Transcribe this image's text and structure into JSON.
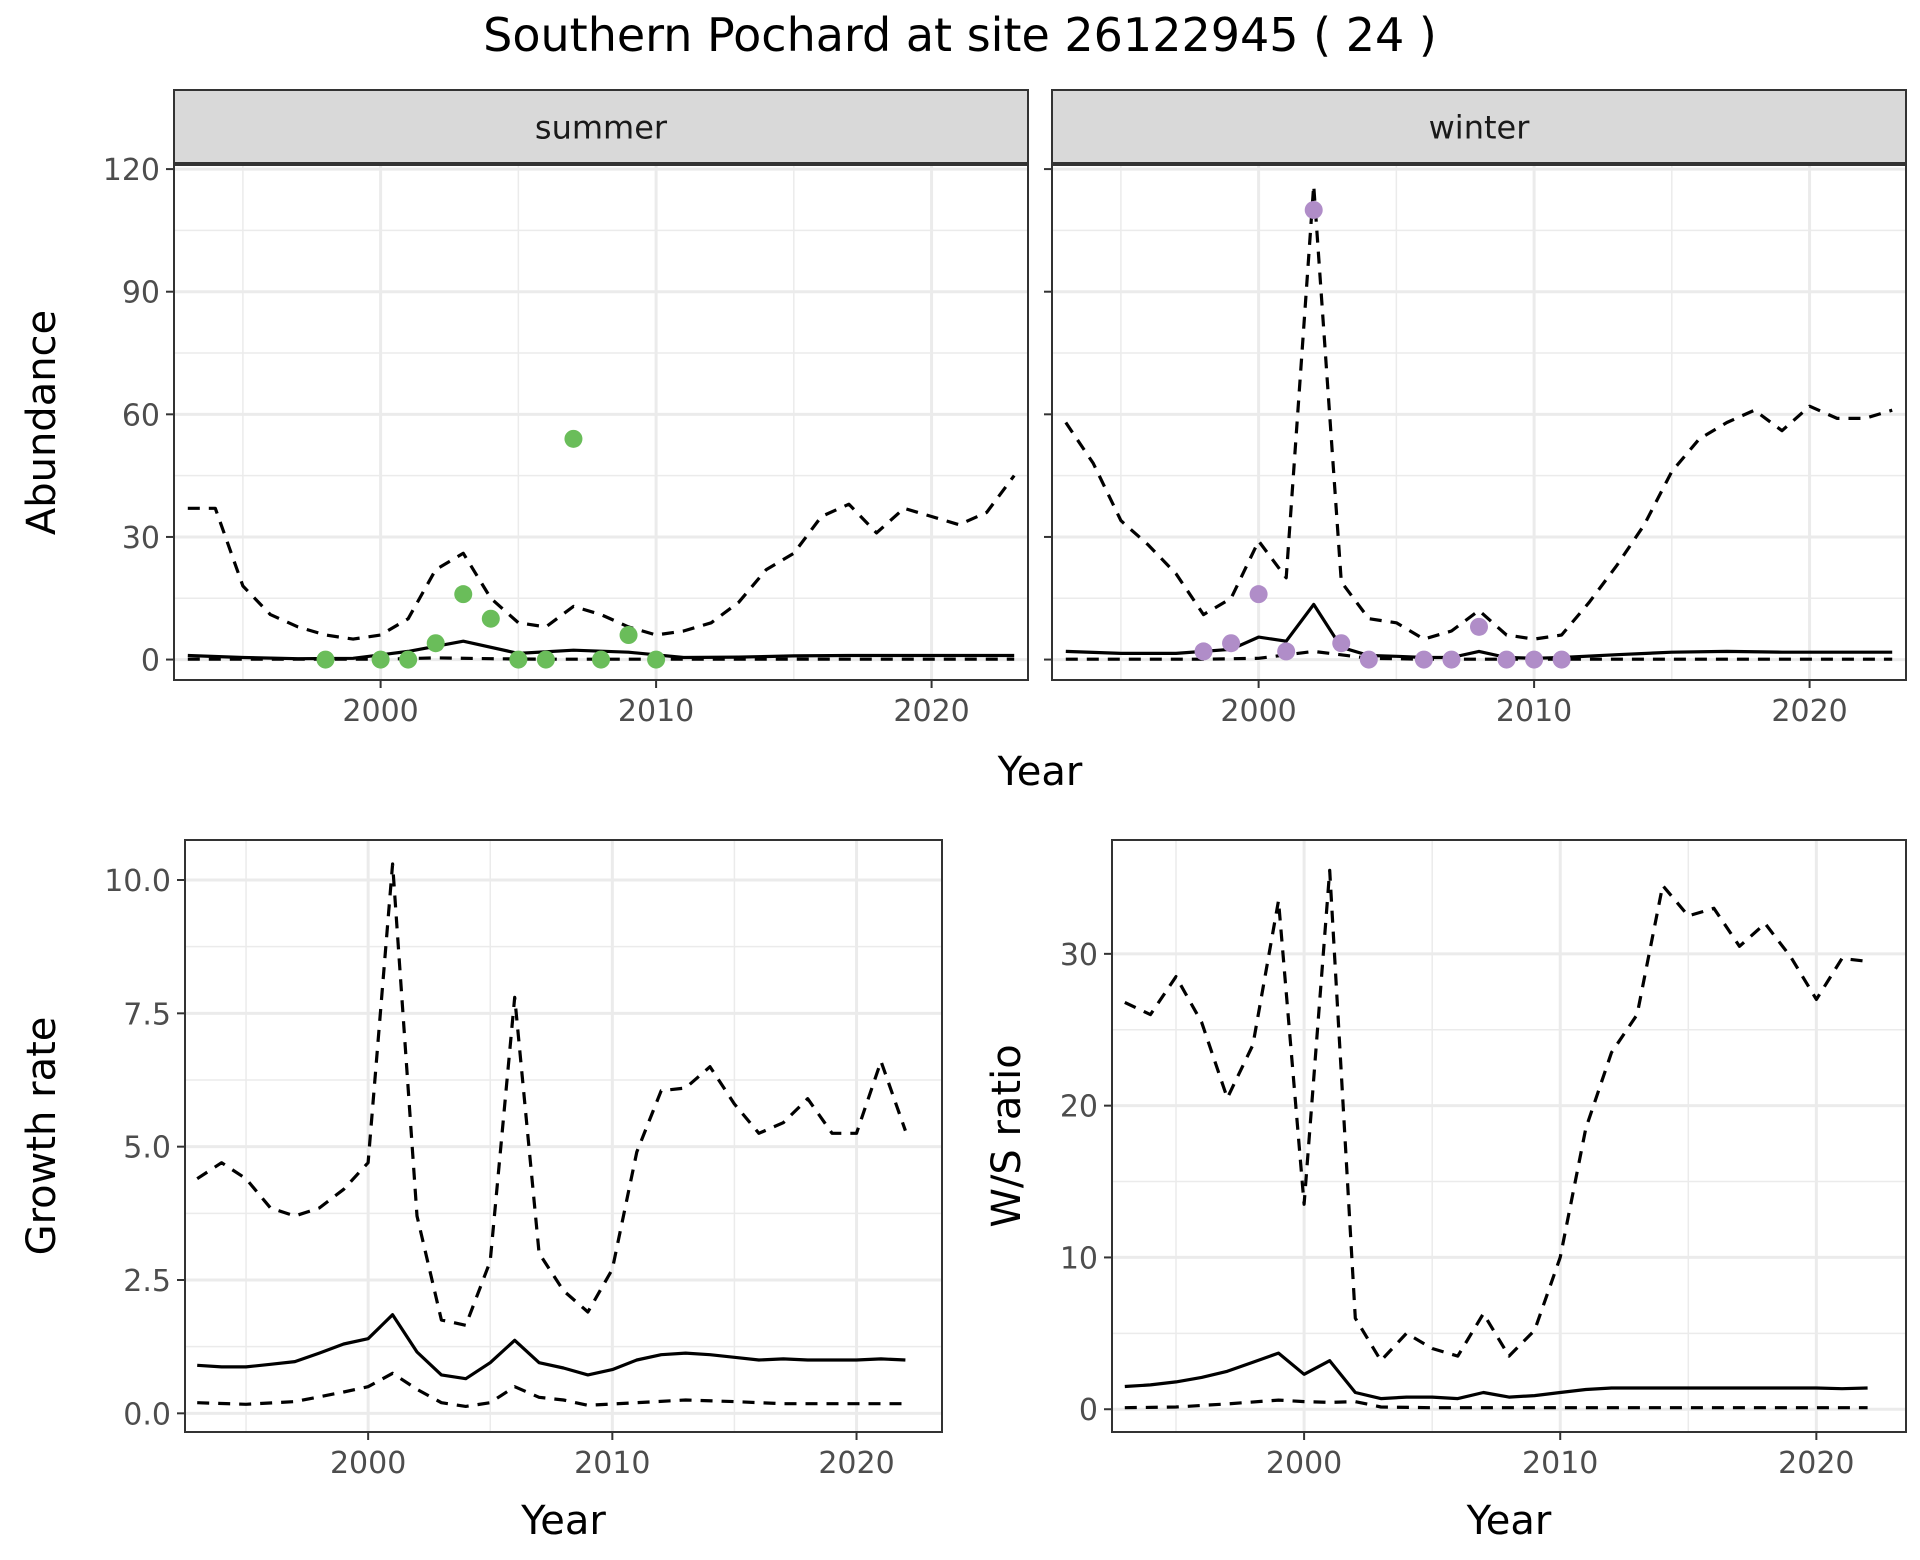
{
  "title": "Southern Pochard at site 26122945 ( 24 )",
  "styles": {
    "summer_point_color": "#6ABD5A",
    "winter_point_color": "#B08DC8",
    "line_color": "#000000",
    "strip_fill": "#D9D9D9",
    "grid_color": "#EBEBEB"
  },
  "chart_data": [
    {
      "type": "line",
      "panel": "summer",
      "strip_label": "summer",
      "xlabel": "Year",
      "ylabel": "Abundance",
      "xlim": [
        1992.5,
        2023.5
      ],
      "ylim": [
        -5,
        121
      ],
      "xticks": [
        2000,
        2010,
        2020
      ],
      "yticks": [
        0,
        30,
        60,
        90,
        120
      ],
      "grid": true,
      "series": [
        {
          "style": "solid",
          "x": [
            1993,
            1995,
            1997,
            1999,
            2001,
            2003,
            2005,
            2007,
            2009,
            2011,
            2013,
            2015,
            2017,
            2019,
            2021,
            2023
          ],
          "y": [
            1,
            0.5,
            0.2,
            0.3,
            2,
            4.5,
            1.5,
            2.3,
            1.8,
            0.5,
            0.6,
            0.9,
            1,
            1,
            1,
            1
          ]
        },
        {
          "style": "dashed",
          "x": [
            1993,
            1994,
            1995,
            1996,
            1997,
            1998,
            1999,
            2000,
            2001,
            2002,
            2003,
            2004,
            2005,
            2006,
            2007,
            2008,
            2009,
            2010,
            2011,
            2012,
            2013,
            2014,
            2015,
            2016,
            2017,
            2018,
            2019,
            2020,
            2021,
            2022,
            2023
          ],
          "y": [
            37,
            37,
            18,
            11,
            8,
            6,
            5,
            6,
            10,
            22,
            26,
            15,
            9,
            8,
            13,
            11,
            8,
            6,
            7,
            9,
            14,
            22,
            26,
            35,
            38,
            31,
            37,
            35,
            33,
            36,
            45
          ]
        },
        {
          "style": "dashed",
          "x": [
            1993,
            1998,
            2000,
            2002,
            2004,
            2006,
            2010,
            2015,
            2023
          ],
          "y": [
            0.1,
            0.1,
            0.1,
            0.4,
            0.2,
            0.1,
            0.1,
            0.1,
            0.1
          ]
        }
      ],
      "points": {
        "x": [
          1998,
          2000,
          2001,
          2002,
          2003,
          2004,
          2005,
          2006,
          2007,
          2008,
          2009,
          2010
        ],
        "y": [
          0,
          0,
          0,
          4,
          16,
          10,
          0,
          0,
          54,
          0,
          6,
          0
        ]
      }
    },
    {
      "type": "line",
      "panel": "winter",
      "strip_label": "winter",
      "xlabel": "Year",
      "ylabel": "Abundance",
      "xlim": [
        1992.5,
        2023.5
      ],
      "ylim": [
        -5,
        121
      ],
      "xticks": [
        2000,
        2010,
        2020
      ],
      "yticks": [
        0,
        30,
        60,
        90,
        120
      ],
      "grid": true,
      "series": [
        {
          "style": "solid",
          "x": [
            1993,
            1995,
            1997,
            1999,
            2000,
            2001,
            2002,
            2003,
            2004,
            2005,
            2006,
            2007,
            2008,
            2009,
            2010,
            2011,
            2013,
            2015,
            2017,
            2019,
            2021,
            2023
          ],
          "y": [
            2,
            1.5,
            1.5,
            2.5,
            5.5,
            4.5,
            13.5,
            3,
            1,
            0.8,
            0.5,
            0.5,
            2,
            0.5,
            0.3,
            0.5,
            1.2,
            1.8,
            2,
            1.8,
            1.8,
            1.8
          ]
        },
        {
          "style": "dashed",
          "x": [
            1993,
            1994,
            1995,
            1996,
            1997,
            1998,
            1999,
            2000,
            2001,
            2002,
            2003,
            2004,
            2005,
            2006,
            2007,
            2008,
            2009,
            2010,
            2011,
            2012,
            2013,
            2014,
            2015,
            2016,
            2017,
            2018,
            2019,
            2020,
            2021,
            2022,
            2023
          ],
          "y": [
            58,
            48,
            34,
            28,
            21,
            11,
            15,
            29,
            20,
            116,
            19,
            10,
            9,
            5,
            7,
            12,
            6,
            5,
            6,
            14,
            23,
            33,
            46,
            54,
            58,
            61,
            56,
            62,
            59,
            59,
            61
          ]
        },
        {
          "style": "dashed",
          "x": [
            1993,
            1998,
            2000,
            2002,
            2004,
            2006,
            2010,
            2015,
            2023
          ],
          "y": [
            0.1,
            0.1,
            0.3,
            2,
            0.3,
            0.1,
            0.1,
            0.1,
            0.1
          ]
        }
      ],
      "points": {
        "x": [
          1998,
          1999,
          2000,
          2001,
          2002,
          2003,
          2004,
          2006,
          2007,
          2008,
          2009,
          2010,
          2011
        ],
        "y": [
          2,
          4,
          16,
          2,
          110,
          4,
          0,
          0,
          0,
          8,
          0,
          0,
          0
        ]
      }
    },
    {
      "type": "line",
      "panel": "growth",
      "xlabel": "Year",
      "ylabel": "Growth rate",
      "xlim": [
        1992.5,
        2023.5
      ],
      "ylim": [
        -0.35,
        10.75
      ],
      "xticks": [
        2000,
        2010,
        2020
      ],
      "yticks": [
        0,
        2.5,
        5,
        7.5,
        10
      ],
      "ytick_labels": [
        "0.0",
        "2.5",
        "5.0",
        "7.5",
        "10.0"
      ],
      "grid": true,
      "series": [
        {
          "style": "solid",
          "x": [
            1993,
            1994,
            1995,
            1996,
            1997,
            1998,
            1999,
            2000,
            2001,
            2002,
            2003,
            2004,
            2005,
            2006,
            2007,
            2008,
            2009,
            2010,
            2011,
            2012,
            2013,
            2014,
            2015,
            2016,
            2017,
            2018,
            2019,
            2020,
            2021,
            2022
          ],
          "y": [
            0.9,
            0.87,
            0.87,
            0.92,
            0.97,
            1.13,
            1.3,
            1.4,
            1.85,
            1.15,
            0.72,
            0.65,
            0.95,
            1.37,
            0.95,
            0.85,
            0.72,
            0.82,
            1,
            1.1,
            1.13,
            1.1,
            1.05,
            1,
            1.02,
            1,
            1,
            1,
            1.02,
            1
          ]
        },
        {
          "style": "dashed",
          "x": [
            1993,
            1994,
            1995,
            1996,
            1997,
            1998,
            1999,
            2000,
            2001,
            2002,
            2003,
            2004,
            2005,
            2006,
            2007,
            2008,
            2009,
            2010,
            2011,
            2012,
            2013,
            2014,
            2015,
            2016,
            2017,
            2018,
            2019,
            2020,
            2021,
            2022
          ],
          "y": [
            4.4,
            4.7,
            4.4,
            3.85,
            3.7,
            3.85,
            4.2,
            4.7,
            10.3,
            3.7,
            1.75,
            1.65,
            2.85,
            7.8,
            3,
            2.3,
            1.9,
            2.7,
            4.9,
            6.05,
            6.1,
            6.5,
            5.8,
            5.25,
            5.45,
            5.9,
            5.25,
            5.25,
            6.6,
            5.3
          ]
        },
        {
          "style": "dashed",
          "x": [
            1993,
            1995,
            1997,
            1999,
            2000,
            2001,
            2002,
            2003,
            2004,
            2005,
            2006,
            2007,
            2008,
            2009,
            2011,
            2013,
            2015,
            2017,
            2019,
            2021,
            2022
          ],
          "y": [
            0.2,
            0.17,
            0.22,
            0.4,
            0.5,
            0.75,
            0.45,
            0.2,
            0.13,
            0.2,
            0.5,
            0.3,
            0.25,
            0.15,
            0.2,
            0.25,
            0.22,
            0.18,
            0.18,
            0.18,
            0.18
          ]
        }
      ]
    },
    {
      "type": "line",
      "panel": "ws_ratio",
      "xlabel": "Year",
      "ylabel": "W/S ratio",
      "xlim": [
        1992.5,
        2023.5
      ],
      "ylim": [
        -1.5,
        37.5
      ],
      "xticks": [
        2000,
        2010,
        2020
      ],
      "yticks": [
        0,
        10,
        20,
        30
      ],
      "grid": true,
      "series": [
        {
          "style": "solid",
          "x": [
            1993,
            1994,
            1995,
            1996,
            1997,
            1998,
            1999,
            2000,
            2001,
            2002,
            2003,
            2004,
            2005,
            2006,
            2007,
            2008,
            2009,
            2010,
            2011,
            2012,
            2013,
            2014,
            2015,
            2016,
            2017,
            2018,
            2019,
            2020,
            2021,
            2022
          ],
          "y": [
            1.5,
            1.6,
            1.8,
            2.1,
            2.5,
            3.1,
            3.7,
            2.3,
            3.2,
            1.1,
            0.7,
            0.8,
            0.8,
            0.7,
            1.1,
            0.8,
            0.9,
            1.1,
            1.3,
            1.4,
            1.4,
            1.4,
            1.4,
            1.4,
            1.4,
            1.4,
            1.4,
            1.4,
            1.35,
            1.4
          ]
        },
        {
          "style": "dashed",
          "x": [
            1993,
            1994,
            1995,
            1996,
            1997,
            1998,
            1999,
            2000,
            2001,
            2002,
            2003,
            2004,
            2005,
            2006,
            2007,
            2008,
            2009,
            2010,
            2011,
            2012,
            2013,
            2014,
            2015,
            2016,
            2017,
            2018,
            2019,
            2020,
            2021,
            2022
          ],
          "y": [
            26.8,
            26,
            28.5,
            25.5,
            20.5,
            24,
            33.5,
            13.5,
            35.5,
            6,
            3.2,
            5,
            4,
            3.5,
            6.3,
            3.5,
            5.2,
            10,
            18.5,
            23.5,
            26,
            34.5,
            32.5,
            33,
            30.5,
            32,
            29.8,
            27,
            29.7,
            29.5
          ]
        },
        {
          "style": "dashed",
          "x": [
            1993,
            1995,
            1997,
            1999,
            2000,
            2001,
            2002,
            2003,
            2005,
            2010,
            2015,
            2022
          ],
          "y": [
            0.1,
            0.15,
            0.35,
            0.6,
            0.5,
            0.45,
            0.5,
            0.15,
            0.1,
            0.1,
            0.1,
            0.1
          ]
        }
      ]
    }
  ]
}
